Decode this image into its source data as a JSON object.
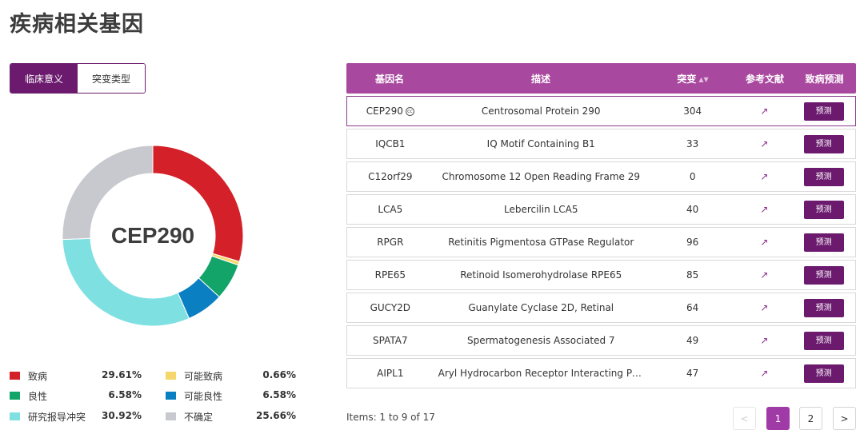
{
  "title": "疾病相关基因",
  "toggle": {
    "clinical_label": "临床意义",
    "mutation_type_label": "突变类型"
  },
  "colors": {
    "brand": "#6b1a6e",
    "header": "#a9489f"
  },
  "chart_data": {
    "type": "pie",
    "title": "CEP290",
    "center_label": "CEP290",
    "categories": [
      "致病",
      "可能致病",
      "良性",
      "可能良性",
      "研究报导冲突",
      "不确定"
    ],
    "values": [
      29.61,
      0.66,
      6.58,
      6.58,
      30.92,
      25.66
    ],
    "colors": [
      "#d42028",
      "#f5d76e",
      "#13a46a",
      "#0a7fc1",
      "#7fe0e2",
      "#c7c9ce"
    ]
  },
  "legend": [
    {
      "label": "致病",
      "value": "29.61%",
      "color": "#d42028"
    },
    {
      "label": "可能致病",
      "value": "0.66%",
      "color": "#f5d76e"
    },
    {
      "label": "良性",
      "value": "6.58%",
      "color": "#13a46a"
    },
    {
      "label": "可能良性",
      "value": "6.58%",
      "color": "#0a7fc1"
    },
    {
      "label": "研究报导冲突",
      "value": "30.92%",
      "color": "#7fe0e2"
    },
    {
      "label": "不确定",
      "value": "25.66%",
      "color": "#c7c9ce"
    }
  ],
  "table": {
    "headers": {
      "gene": "基因名",
      "desc": "描述",
      "mutation": "突变",
      "ref": "参考文献",
      "predict": "致病预测"
    },
    "predict_button": "预测",
    "rows": [
      {
        "gene": "CEP290",
        "desc": "Centrosomal Protein 290",
        "mutations": "304",
        "cc": "cc"
      },
      {
        "gene": "IQCB1",
        "desc": "IQ Motif Containing B1",
        "mutations": "33"
      },
      {
        "gene": "C12orf29",
        "desc": "Chromosome 12 Open Reading Frame 29",
        "mutations": "0"
      },
      {
        "gene": "LCA5",
        "desc": "Lebercilin LCA5",
        "mutations": "40"
      },
      {
        "gene": "RPGR",
        "desc": "Retinitis Pigmentosa GTPase Regulator",
        "mutations": "96"
      },
      {
        "gene": "RPE65",
        "desc": "Retinoid Isomerohydrolase RPE65",
        "mutations": "85"
      },
      {
        "gene": "GUCY2D",
        "desc": "Guanylate Cyclase 2D, Retinal",
        "mutations": "64"
      },
      {
        "gene": "SPATA7",
        "desc": "Spermatogenesis Associated 7",
        "mutations": "49"
      },
      {
        "gene": "AIPL1",
        "desc": "Aryl Hydrocarbon Receptor Interacting Protein…",
        "mutations": "47"
      }
    ]
  },
  "pagination": {
    "info": "Items: 1 to 9 of 17",
    "prev": "<",
    "pages": [
      "1",
      "2"
    ],
    "next": ">"
  }
}
